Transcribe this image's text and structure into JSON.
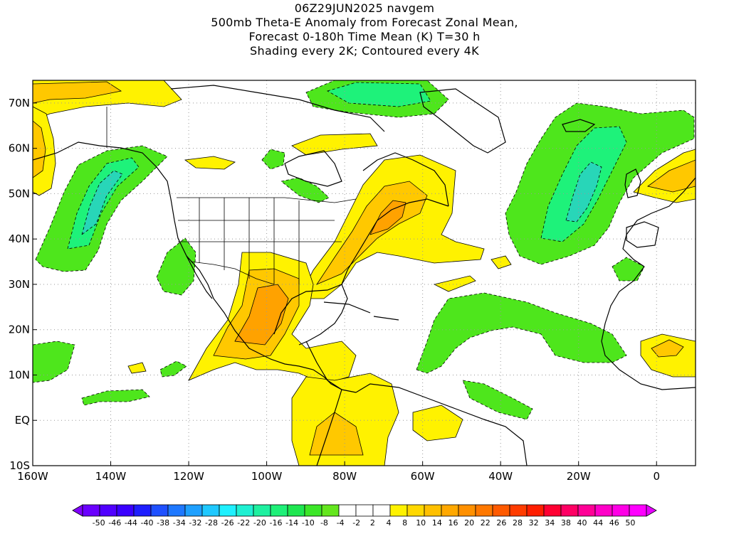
{
  "header": {
    "line1": "06Z29JUN2025 navgem",
    "line2": "500mb Theta-E Anomaly from Forecast Zonal Mean,",
    "line3": "Forecast 0-180h Time Mean (K) T=30 h",
    "line4": "Shading every 2K; Contoured every 4K"
  },
  "map": {
    "lon_range": [
      -160,
      10
    ],
    "lat_range": [
      -10,
      75
    ],
    "lon_ticks": [
      {
        "value": -160,
        "label": "160W"
      },
      {
        "value": -140,
        "label": "140W"
      },
      {
        "value": -120,
        "label": "120W"
      },
      {
        "value": -100,
        "label": "100W"
      },
      {
        "value": -80,
        "label": "80W"
      },
      {
        "value": -60,
        "label": "60W"
      },
      {
        "value": -40,
        "label": "40W"
      },
      {
        "value": -20,
        "label": "20W"
      },
      {
        "value": 0,
        "label": "0"
      }
    ],
    "lat_ticks": [
      {
        "value": 70,
        "label": "70N"
      },
      {
        "value": 60,
        "label": "60N"
      },
      {
        "value": 50,
        "label": "50N"
      },
      {
        "value": 40,
        "label": "40N"
      },
      {
        "value": 30,
        "label": "30N"
      },
      {
        "value": 20,
        "label": "20N"
      },
      {
        "value": 10,
        "label": "10N"
      },
      {
        "value": 0,
        "label": "EQ"
      },
      {
        "value": -10,
        "label": "10S"
      }
    ],
    "grid": true,
    "colors": {
      "pos_2": "#fff200",
      "pos_4": "#ffc800",
      "pos_6": "#ffa200",
      "neg_2": "#4ee61c",
      "neg_4": "#1ef27a",
      "neg_6": "#28d6b8",
      "coast": "#000000",
      "grid": "#999999"
    }
  },
  "colorbar": {
    "labels": [
      "-50",
      "-46",
      "-44",
      "-40",
      "-38",
      "-34",
      "-32",
      "-28",
      "-26",
      "-22",
      "-20",
      "-16",
      "-14",
      "-10",
      "-8",
      "-4",
      "-2",
      "2",
      "4",
      "8",
      "10",
      "14",
      "16",
      "20",
      "22",
      "26",
      "28",
      "32",
      "34",
      "38",
      "40",
      "44",
      "46",
      "50"
    ],
    "colors": [
      "#8000ff",
      "#6a00ff",
      "#5000ff",
      "#3a00ff",
      "#1e1eff",
      "#1e50ff",
      "#1e78ff",
      "#1ea0ff",
      "#1ec8ff",
      "#1ef0ff",
      "#1ef0d2",
      "#1ef0a0",
      "#1ef078",
      "#1ee650",
      "#3ce628",
      "#64e61e",
      "#ffffff",
      "#ffffff",
      "#ffffff",
      "#fff200",
      "#ffd800",
      "#ffc000",
      "#ffa800",
      "#ff9000",
      "#ff7800",
      "#ff5a00",
      "#ff3c00",
      "#ff1e00",
      "#ff0032",
      "#ff0064",
      "#ff0096",
      "#ff00c8",
      "#ff00e6",
      "#ff00ff",
      "#e600ff"
    ]
  }
}
